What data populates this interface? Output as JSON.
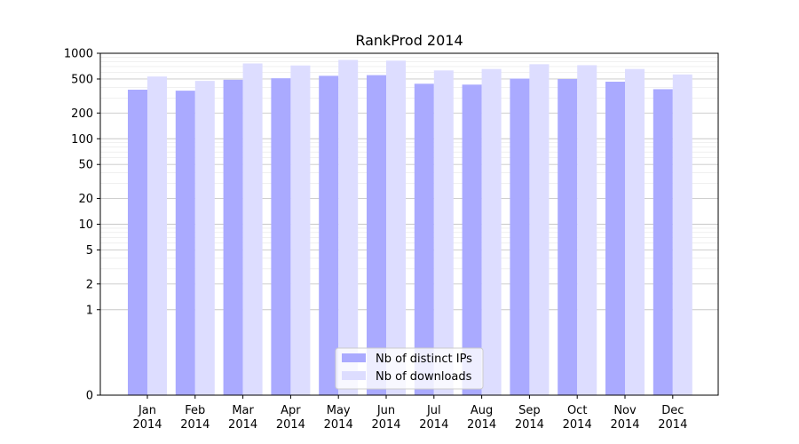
{
  "chart_data": {
    "type": "bar",
    "title": "RankProd 2014",
    "xlabel": "",
    "ylabel": "",
    "y_scale": "symlog",
    "ylim": [
      0,
      1000
    ],
    "y_ticks": [
      0,
      1,
      2,
      5,
      10,
      20,
      50,
      100,
      200,
      500,
      1000
    ],
    "y_tick_labels": [
      "0",
      "1",
      "2",
      "5",
      "10",
      "20",
      "50",
      "100",
      "200",
      "500",
      "1000"
    ],
    "grid": true,
    "legend_position": "bottom-center",
    "categories": [
      [
        "Jan",
        "2014"
      ],
      [
        "Feb",
        "2014"
      ],
      [
        "Mar",
        "2014"
      ],
      [
        "Apr",
        "2014"
      ],
      [
        "May",
        "2014"
      ],
      [
        "Jun",
        "2014"
      ],
      [
        "Jul",
        "2014"
      ],
      [
        "Aug",
        "2014"
      ],
      [
        "Sep",
        "2014"
      ],
      [
        "Oct",
        "2014"
      ],
      [
        "Nov",
        "2014"
      ],
      [
        "Dec",
        "2014"
      ]
    ],
    "series": [
      {
        "name": "Nb of distinct IPs",
        "color": "#aaaaff",
        "values": [
          375,
          365,
          490,
          510,
          545,
          555,
          440,
          430,
          505,
          500,
          465,
          380
        ]
      },
      {
        "name": "Nb of downloads",
        "color": "#ddddff",
        "values": [
          535,
          475,
          760,
          720,
          835,
          820,
          630,
          655,
          745,
          725,
          655,
          565
        ]
      }
    ]
  }
}
